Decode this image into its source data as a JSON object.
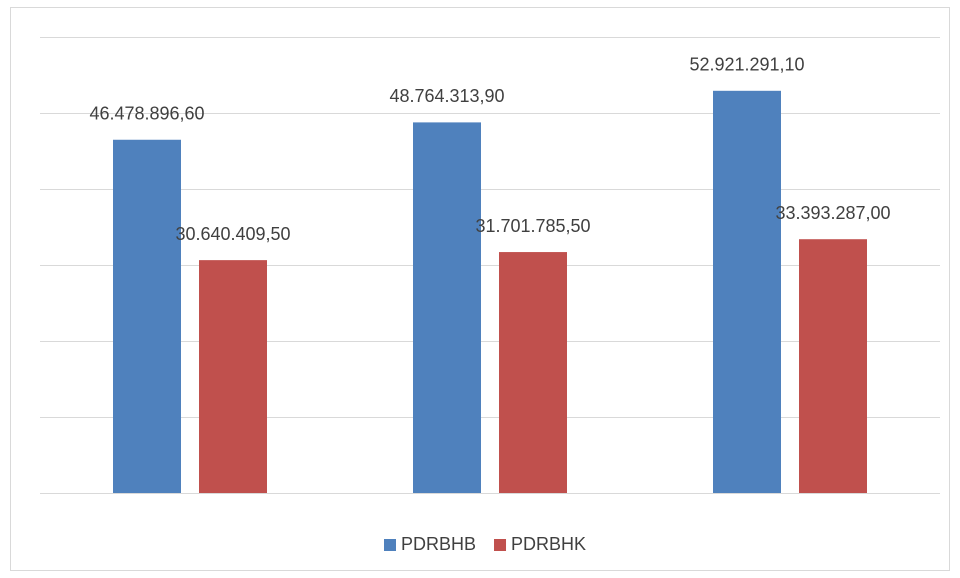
{
  "chart_data": {
    "type": "bar",
    "categories": [
      null,
      null,
      null
    ],
    "series": [
      {
        "name": "PDRBHB",
        "color": "#4f81bd",
        "values": [
          46478896.6,
          48764313.9,
          52921291.1
        ],
        "value_labels": [
          "46.478.896,60",
          "48.764.313,90",
          "52.921.291,10"
        ]
      },
      {
        "name": "PDRBHK",
        "color": "#c0504d",
        "values": [
          30640409.5,
          31701785.5,
          33393287
        ],
        "value_labels": [
          "30.640.409,50",
          "31.701.785,50",
          "33.393.287,00"
        ]
      }
    ],
    "ylim": [
      0,
      60000000
    ],
    "yticks": [
      0,
      10000000,
      20000000,
      30000000,
      40000000,
      50000000,
      60000000
    ],
    "grid": true,
    "legend": "bottom"
  }
}
